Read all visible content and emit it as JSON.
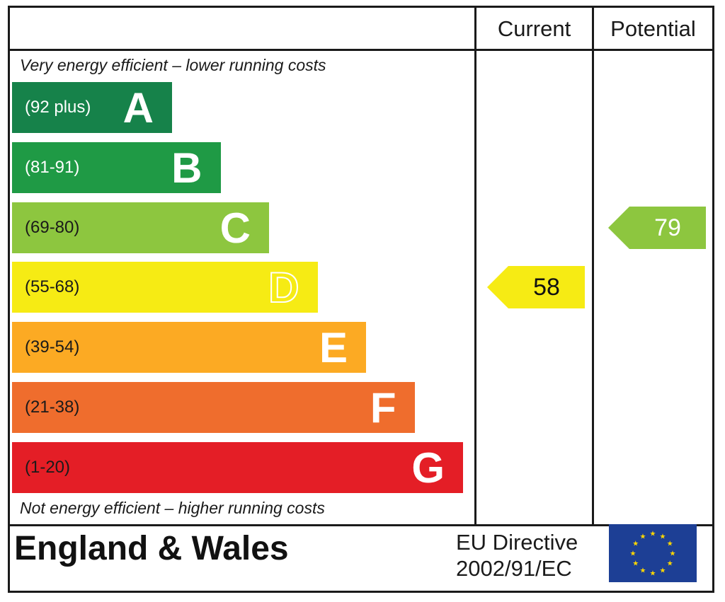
{
  "header": {
    "current_label": "Current",
    "potential_label": "Potential"
  },
  "notes": {
    "top": "Very energy efficient – lower running costs",
    "bottom": "Not energy efficient – higher running costs"
  },
  "bands": [
    {
      "range": "(92 plus)",
      "letter": "A",
      "color": "#16824a",
      "text_color": "#ffffff"
    },
    {
      "range": "(81-91)",
      "letter": "B",
      "color": "#1f9a45",
      "text_color": "#ffffff"
    },
    {
      "range": "(69-80)",
      "letter": "C",
      "color": "#8dc63f",
      "text_color": "#1a1a1a"
    },
    {
      "range": "(55-68)",
      "letter": "D",
      "color": "#f6eb14",
      "text_color": "#1a1a1a"
    },
    {
      "range": "(39-54)",
      "letter": "E",
      "color": "#fcaa23",
      "text_color": "#1a1a1a"
    },
    {
      "range": "(21-38)",
      "letter": "F",
      "color": "#ef6d2d",
      "text_color": "#1a1a1a"
    },
    {
      "range": "(1-20)",
      "letter": "G",
      "color": "#e41e26",
      "text_color": "#1a1a1a"
    }
  ],
  "chart_data": {
    "type": "bar",
    "title": "",
    "categories": [
      "A",
      "B",
      "C",
      "D",
      "E",
      "F",
      "G"
    ],
    "ranges": [
      "(92 plus)",
      "(81-91)",
      "(69-80)",
      "(55-68)",
      "(39-54)",
      "(21-38)",
      "(1-20)"
    ],
    "current": {
      "value": 58,
      "band": "D",
      "color": "#f6eb14"
    },
    "potential": {
      "value": 79,
      "band": "C",
      "color": "#8dc63f"
    }
  },
  "footer": {
    "region": "England & Wales",
    "directive_line1": "EU Directive",
    "directive_line2": "2002/91/EC",
    "flag_color": "#1d3f95",
    "star_color": "#ffd700"
  }
}
